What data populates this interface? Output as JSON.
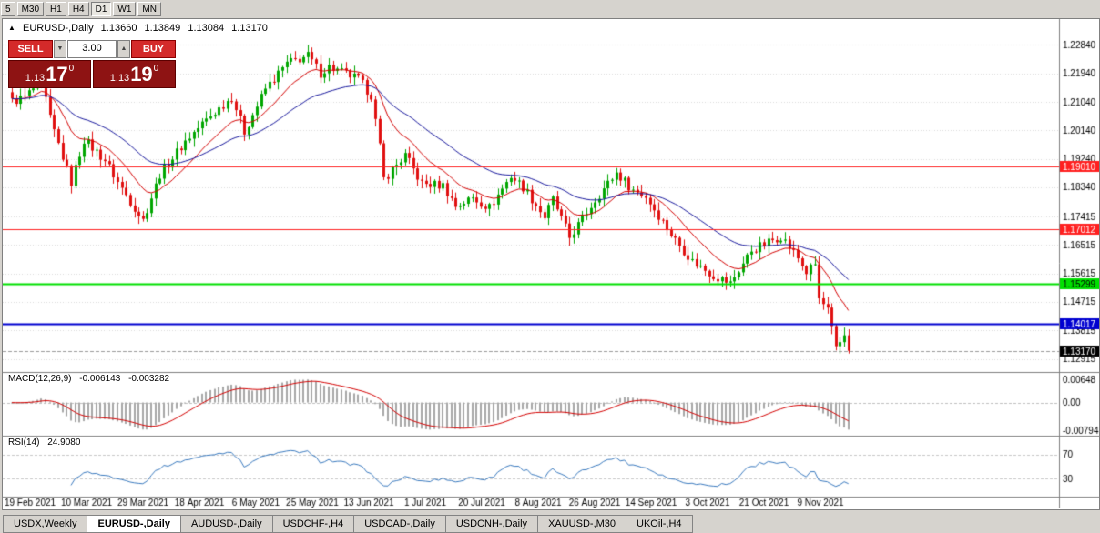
{
  "toolbar": {
    "timeframes": [
      "5",
      "M30",
      "H1",
      "H4",
      "D1",
      "W1",
      "MN"
    ],
    "active": "D1"
  },
  "chart_header": {
    "marker": "▲",
    "title": "EURUSD-,Daily",
    "open": "1.13660",
    "high": "1.13849",
    "low": "1.13084",
    "close": "1.13170"
  },
  "trade_panel": {
    "sell_label": "SELL",
    "buy_label": "BUY",
    "volume": "3.00",
    "down_arrow": "▼",
    "up_arrow": "▲",
    "sell_price": {
      "base": "1.13",
      "pips": "17",
      "pipette": "0"
    },
    "buy_price": {
      "base": "1.13",
      "pips": "19",
      "pipette": "0"
    }
  },
  "tabs": [
    {
      "label": "USDX,Weekly",
      "active": false
    },
    {
      "label": "EURUSD-,Daily",
      "active": true
    },
    {
      "label": "AUDUSD-,Daily",
      "active": false
    },
    {
      "label": "USDCHF-,H4",
      "active": false
    },
    {
      "label": "USDCAD-,Daily",
      "active": false
    },
    {
      "label": "USDCNH-,Daily",
      "active": false
    },
    {
      "label": "XAUUSD-,M30",
      "active": false
    },
    {
      "label": "UKOil-,H4",
      "active": false
    }
  ],
  "chart_data": {
    "type": "candlestick",
    "symbol": "EURUSD-",
    "timeframe": "Daily",
    "colors": {
      "bull": "#00a600",
      "bear": "#e01010",
      "ma_fast": "#d40000",
      "ma_slow": "#1a1a9e",
      "macd_hist": "#a8a8a8",
      "macd_signal": "#d40000",
      "rsi": "#3a7abf",
      "grid": "#dadada",
      "separator": "#808080",
      "bid_line": "#9a9a9a"
    },
    "price_pane": {
      "range": [
        1.125,
        1.236
      ],
      "y_ticks": [
        {
          "v": 1.2284,
          "label": "1.22840"
        },
        {
          "v": 1.2194,
          "label": "1.21940"
        },
        {
          "v": 1.2104,
          "label": "1.21040"
        },
        {
          "v": 1.2014,
          "label": "1.20140"
        },
        {
          "v": 1.1924,
          "label": "1.19240"
        },
        {
          "v": 1.1834,
          "label": "1.18340"
        },
        {
          "v": 1.17415,
          "label": "1.17415"
        },
        {
          "v": 1.16515,
          "label": "1.16515"
        },
        {
          "v": 1.15615,
          "label": "1.15615"
        },
        {
          "v": 1.14715,
          "label": "1.14715"
        },
        {
          "v": 1.13815,
          "label": "1.13815"
        },
        {
          "v": 1.12915,
          "label": "1.12915"
        }
      ],
      "hlines": [
        {
          "v": 1.1901,
          "label": "1.19010",
          "color": "#ff2020",
          "text_color": "#ffffff",
          "width": 1
        },
        {
          "v": 1.17012,
          "label": "1.17012",
          "color": "#ff2020",
          "text_color": "#ffffff",
          "width": 1
        },
        {
          "v": 1.15299,
          "label": "1.15299",
          "color": "#00e000",
          "text_color": "#000000",
          "width": 2
        },
        {
          "v": 1.14017,
          "label": "1.14017",
          "color": "#0000d0",
          "text_color": "#ffffff",
          "width": 2
        }
      ],
      "bid": {
        "v": 1.1317,
        "label": "1.13170",
        "bg": "#000000",
        "text_color": "#ffffff"
      },
      "ma_fast_period": 13,
      "ma_slow_period": 34
    },
    "candles": {
      "count": 199,
      "noise": 0.003,
      "anchors": [
        [
          0,
          1.2105
        ],
        [
          3,
          1.212
        ],
        [
          7,
          1.217
        ],
        [
          9,
          1.205
        ],
        [
          14,
          1.185
        ],
        [
          17,
          1.1985
        ],
        [
          22,
          1.192
        ],
        [
          25,
          1.185
        ],
        [
          31,
          1.173
        ],
        [
          35,
          1.1875
        ],
        [
          41,
          1.198
        ],
        [
          45,
          1.2035
        ],
        [
          52,
          1.212
        ],
        [
          55,
          1.201
        ],
        [
          60,
          1.2145
        ],
        [
          65,
          1.2225
        ],
        [
          70,
          1.225
        ],
        [
          73,
          1.2195
        ],
        [
          75,
          1.2215
        ],
        [
          82,
          1.2175
        ],
        [
          85,
          1.2125
        ],
        [
          87,
          1.196
        ],
        [
          88,
          1.186
        ],
        [
          93,
          1.1935
        ],
        [
          97,
          1.1845
        ],
        [
          102,
          1.184
        ],
        [
          105,
          1.1775
        ],
        [
          109,
          1.18
        ],
        [
          113,
          1.177
        ],
        [
          118,
          1.187
        ],
        [
          121,
          1.1835
        ],
        [
          126,
          1.174
        ],
        [
          128,
          1.1795
        ],
        [
          132,
          1.1675
        ],
        [
          138,
          1.1795
        ],
        [
          143,
          1.188
        ],
        [
          147,
          1.1825
        ],
        [
          150,
          1.1805
        ],
        [
          156,
          1.1685
        ],
        [
          161,
          1.16
        ],
        [
          166,
          1.1555
        ],
        [
          170,
          1.153
        ],
        [
          175,
          1.1635
        ],
        [
          182,
          1.168
        ],
        [
          186,
          1.161
        ],
        [
          188,
          1.1565
        ],
        [
          190,
          1.159
        ],
        [
          191,
          1.148
        ],
        [
          193,
          1.1445
        ],
        [
          195,
          1.132
        ],
        [
          197,
          1.1366
        ],
        [
          198,
          1.1317
        ]
      ],
      "last": {
        "open": 1.1366,
        "high": 1.13849,
        "low": 1.13084,
        "close": 1.1317
      }
    },
    "macd_pane": {
      "label": "MACD(12,26,9)",
      "value_main": "-0.006143",
      "value_signal": "-0.003282",
      "fast": 12,
      "slow": 26,
      "signal": 9,
      "range": [
        -0.0095,
        0.0085
      ],
      "y_ticks": [
        {
          "v": 0.00648,
          "label": "0.00648"
        },
        {
          "v": 0.0,
          "label": "0.00"
        },
        {
          "v": -0.00794,
          "label": "-0.00794"
        }
      ]
    },
    "rsi_pane": {
      "label": "RSI(14)",
      "value": "24.9080",
      "period": 14,
      "levels": [
        70,
        30
      ],
      "y_ticks": [
        {
          "v": 70,
          "label": "70"
        },
        {
          "v": 30,
          "label": "30"
        }
      ]
    },
    "x_labels": [
      "19 Feb 2021",
      "10 Mar 2021",
      "29 Mar 2021",
      "18 Apr 2021",
      "6 May 2021",
      "25 May 2021",
      "13 Jun 2021",
      "1 Jul 2021",
      "20 Jul 2021",
      "8 Aug 2021",
      "26 Aug 2021",
      "14 Sep 2021",
      "3 Oct 2021",
      "21 Oct 2021",
      "9 Nov 2021"
    ]
  }
}
